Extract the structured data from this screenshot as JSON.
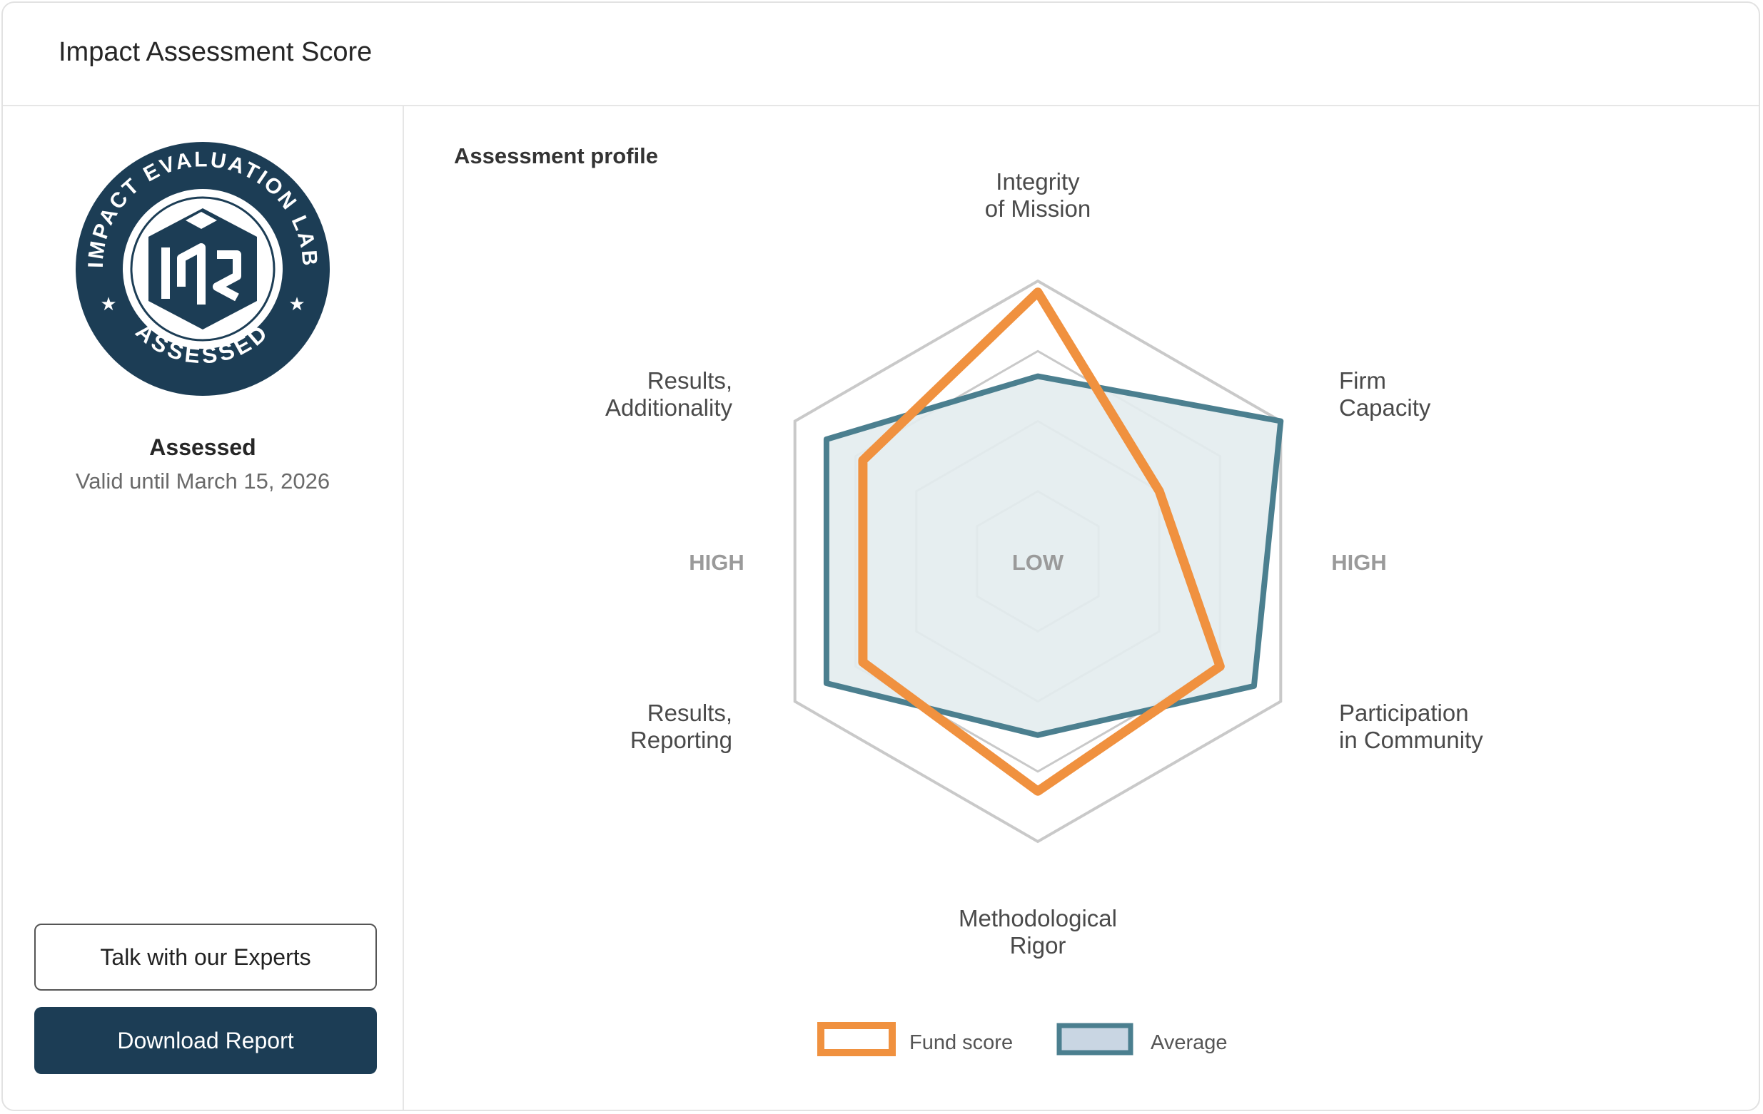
{
  "header": {
    "title": "Impact Assessment Score"
  },
  "sidebar": {
    "badge": {
      "ring_text_top": "IMPACT EVALUATION LAB",
      "ring_text_bottom": "ASSESSED"
    },
    "status_label": "Assessed",
    "validity": "Valid until March 15, 2026",
    "talk_button": "Talk with our Experts",
    "download_button": "Download Report"
  },
  "main": {
    "section_title": "Assessment profile"
  },
  "colors": {
    "fund": "#f0913f",
    "average_stroke": "#4b7f8f",
    "average_fill": "#e3ecee",
    "primary": "#1c3d55",
    "grid": "#c9c9c9"
  },
  "chart_data": {
    "type": "radar",
    "axes": [
      {
        "line1": "Integrity",
        "line2": "of Mission"
      },
      {
        "line1": "Firm",
        "line2": "Capacity"
      },
      {
        "line1": "Participation",
        "line2": "in Community"
      },
      {
        "line1": "Methodological",
        "line2": "Rigor"
      },
      {
        "line1": "Results,",
        "line2": "Reporting"
      },
      {
        "line1": "Results,",
        "line2": "Additionality"
      }
    ],
    "ring_labels": {
      "center": "LOW",
      "left": "HIGH",
      "right": "HIGH"
    },
    "rings": 4,
    "range": [
      0,
      1
    ],
    "series": [
      {
        "name": "Fund score",
        "values": [
          0.96,
          0.5,
          0.75,
          0.82,
          0.72,
          0.72
        ]
      },
      {
        "name": "Average",
        "values": [
          0.66,
          1.0,
          0.89,
          0.62,
          0.87,
          0.87
        ]
      }
    ]
  }
}
